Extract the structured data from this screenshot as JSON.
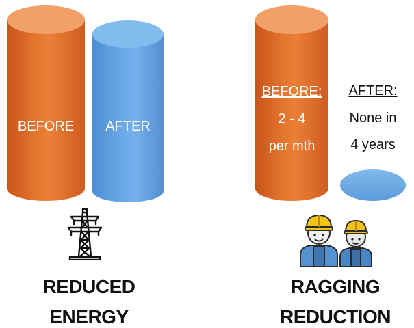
{
  "energy": {
    "before_label": "BEFORE",
    "after_label": "AFTER",
    "caption_line1": "REDUCED",
    "caption_line2": "ENERGY",
    "icon": "power-pylon-icon"
  },
  "ragging": {
    "before_heading": "BEFORE:",
    "before_value": "2 - 4",
    "before_unit": "per mth",
    "after_heading": "AFTER:",
    "after_line1": "None in",
    "after_line2": "4 years",
    "caption_line1": "RAGGING",
    "caption_line2": "REDUCTION",
    "icon": "workers-hardhat-icon"
  },
  "colors": {
    "before": "#e3742e",
    "after": "#6aa7e6"
  }
}
